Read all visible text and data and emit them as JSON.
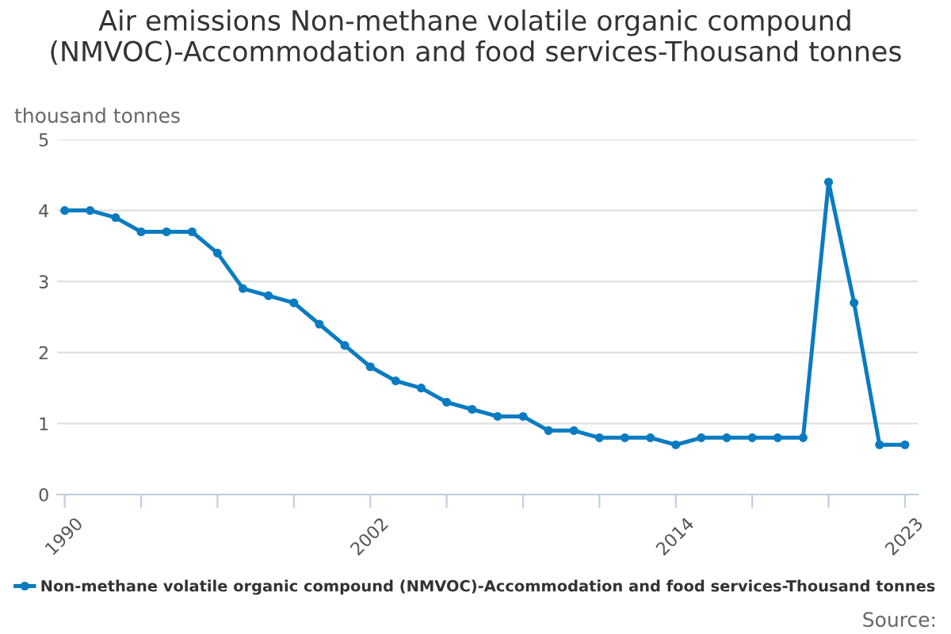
{
  "chart_data": {
    "type": "line",
    "title": "Air emissions Non-methane volatile organic compound (NMVOC)-Accommodation and food services-Thousand tonnes",
    "ylabel": "thousand tonnes",
    "x": [
      1990,
      1991,
      1992,
      1993,
      1994,
      1995,
      1996,
      1997,
      1998,
      1999,
      2000,
      2001,
      2002,
      2003,
      2004,
      2005,
      2006,
      2007,
      2008,
      2009,
      2010,
      2011,
      2012,
      2013,
      2014,
      2015,
      2016,
      2017,
      2018,
      2019,
      2020,
      2021,
      2022,
      2023
    ],
    "series": [
      {
        "name": "Non-methane volatile organic compound (NMVOC)-Accommodation and food services-Thousand tonnes",
        "color": "#0a7bc1",
        "values": [
          4.0,
          4.0,
          3.9,
          3.7,
          3.7,
          3.7,
          3.4,
          2.9,
          2.8,
          2.7,
          2.4,
          2.1,
          1.8,
          1.6,
          1.5,
          1.3,
          1.2,
          1.1,
          1.1,
          0.9,
          0.9,
          0.8,
          0.8,
          0.8,
          0.7,
          0.8,
          0.8,
          0.8,
          0.8,
          0.8,
          4.4,
          2.7,
          0.7,
          0.7
        ]
      }
    ],
    "xlim": [
      1989.7,
      2023.5
    ],
    "xticks": [
      1990,
      {
        "value": 1993,
        "label": null
      },
      {
        "value": 1996,
        "label": null
      },
      {
        "value": 1999,
        "label": null
      },
      2002,
      {
        "value": 2005,
        "label": null
      },
      {
        "value": 2008,
        "label": null
      },
      {
        "value": 2011,
        "label": null
      },
      2014,
      {
        "value": 2017,
        "label": null
      },
      {
        "value": 2020,
        "label": null
      },
      2023
    ],
    "ylim": [
      0,
      5
    ],
    "yticks": [
      0,
      1,
      2,
      3,
      4,
      5
    ],
    "grid": "y",
    "legend": "bottom",
    "marker": "circle",
    "line_style": "solid",
    "annotations": [
      "Source:"
    ]
  }
}
